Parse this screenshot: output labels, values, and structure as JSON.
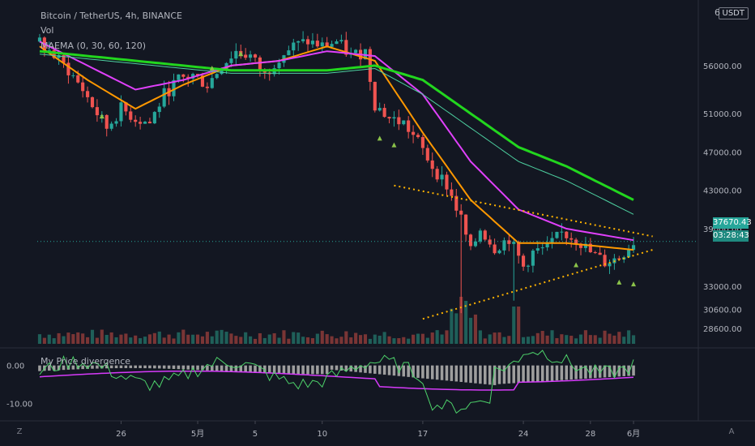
{
  "header": {
    "title": "Bitcoin / TetherUS, 4h, BINANCE",
    "vol_label": "Vol",
    "ma_label": "MAEMA (0, 30, 60, 120)",
    "currency_button": "USDT",
    "top_tick_partial": "6"
  },
  "current_price": {
    "value": "37670.43",
    "countdown": "03:28:43"
  },
  "oscillator": {
    "title": "My Price divergence",
    "ticks": [
      "0.00",
      "-10.00"
    ]
  },
  "footer": {
    "left_icon": "Z",
    "right_icon": "A"
  },
  "colors": {
    "background": "#131722",
    "up": "#26a69a",
    "down": "#ef5350",
    "ma_green": "#22d61e",
    "ma_magenta": "#e040fb",
    "ma_orange": "#ff9800",
    "ma_teal": "#4dd0a0",
    "trendline": "#ffb300",
    "osc_line": "#4dd26a",
    "osc_signal": "#d63af9",
    "osc_hist": "#9e9e9e"
  },
  "chart_data": [
    {
      "type": "candlestick",
      "title": "Bitcoin / TetherUS, 4h, BINANCE",
      "y_ticks": [
        56000,
        51000,
        47000,
        43000,
        39000,
        33000,
        30600,
        28600
      ],
      "y_tick_labels": [
        "56000.00",
        "51000.00",
        "47000.00",
        "43000.00",
        "39000.00",
        "33000.00",
        "30600.00",
        "28600.00"
      ],
      "x_tick_labels": [
        "26",
        "5月",
        "5",
        "10",
        "17",
        "24",
        "28",
        "6月"
      ],
      "ylim": [
        27000,
        62500
      ],
      "price_path": [
        [
          0,
          58500
        ],
        [
          3,
          57000
        ],
        [
          6,
          55500
        ],
        [
          9,
          53500
        ],
        [
          12,
          51000
        ],
        [
          14,
          49500
        ],
        [
          17,
          51500
        ],
        [
          20,
          50500
        ],
        [
          23,
          50000
        ],
        [
          26,
          53000
        ],
        [
          29,
          54500
        ],
        [
          32,
          55000
        ],
        [
          35,
          54000
        ],
        [
          38,
          56000
        ],
        [
          41,
          57500
        ],
        [
          44,
          57000
        ],
        [
          47,
          55000
        ],
        [
          50,
          57000
        ],
        [
          53,
          58000
        ],
        [
          56,
          58500
        ],
        [
          59,
          58000
        ],
        [
          62,
          58500
        ],
        [
          65,
          57000
        ],
        [
          68,
          57500
        ],
        [
          70,
          52000
        ],
        [
          73,
          50500
        ],
        [
          76,
          50000
        ],
        [
          79,
          48000
        ],
        [
          82,
          45500
        ],
        [
          85,
          43500
        ],
        [
          88,
          40000
        ],
        [
          90,
          36500
        ],
        [
          92,
          39000
        ],
        [
          95,
          37000
        ],
        [
          98,
          38000
        ],
        [
          101,
          35000
        ],
        [
          103,
          36500
        ],
        [
          106,
          37000
        ],
        [
          109,
          38500
        ],
        [
          112,
          38000
        ],
        [
          115,
          36500
        ],
        [
          118,
          35500
        ],
        [
          121,
          36000
        ],
        [
          124,
          37670
        ]
      ],
      "moving_averages": [
        {
          "period": 30,
          "color": "#ff9800",
          "path": [
            [
              0,
              58000
            ],
            [
              10,
              54500
            ],
            [
              20,
              51500
            ],
            [
              30,
              54000
            ],
            [
              40,
              56000
            ],
            [
              50,
              56500
            ],
            [
              60,
              58000
            ],
            [
              70,
              56500
            ],
            [
              80,
              49000
            ],
            [
              90,
              42000
            ],
            [
              100,
              37500
            ],
            [
              110,
              37500
            ],
            [
              124,
              36800
            ]
          ]
        },
        {
          "period": 60,
          "color": "#e040fb",
          "path": [
            [
              0,
              58500
            ],
            [
              10,
              56000
            ],
            [
              20,
              53500
            ],
            [
              30,
              54500
            ],
            [
              40,
              56000
            ],
            [
              50,
              56500
            ],
            [
              60,
              57500
            ],
            [
              70,
              57000
            ],
            [
              80,
              53000
            ],
            [
              90,
              46000
            ],
            [
              100,
              41000
            ],
            [
              110,
              39000
            ],
            [
              124,
              37800
            ]
          ]
        },
        {
          "period": 120,
          "color": "#22d61e",
          "path": [
            [
              0,
              57500
            ],
            [
              10,
              57000
            ],
            [
              20,
              56500
            ],
            [
              30,
              56000
            ],
            [
              40,
              55500
            ],
            [
              50,
              55500
            ],
            [
              60,
              55500
            ],
            [
              70,
              56000
            ],
            [
              80,
              54500
            ],
            [
              90,
              51000
            ],
            [
              100,
              47500
            ],
            [
              110,
              45500
            ],
            [
              124,
              42000
            ]
          ]
        }
      ],
      "trendlines": [
        {
          "from": [
            74,
            43500
          ],
          "to": [
            128,
            38200
          ]
        },
        {
          "from": [
            80,
            29600
          ],
          "to": [
            128,
            36800
          ]
        }
      ],
      "current_price_line": 37670.43
    },
    {
      "type": "bar",
      "title": "My Price divergence",
      "y_ticks": [
        0,
        -10
      ],
      "y_tick_labels": [
        "0.00",
        "-10.00"
      ],
      "ylim": [
        -14,
        4
      ]
    }
  ]
}
